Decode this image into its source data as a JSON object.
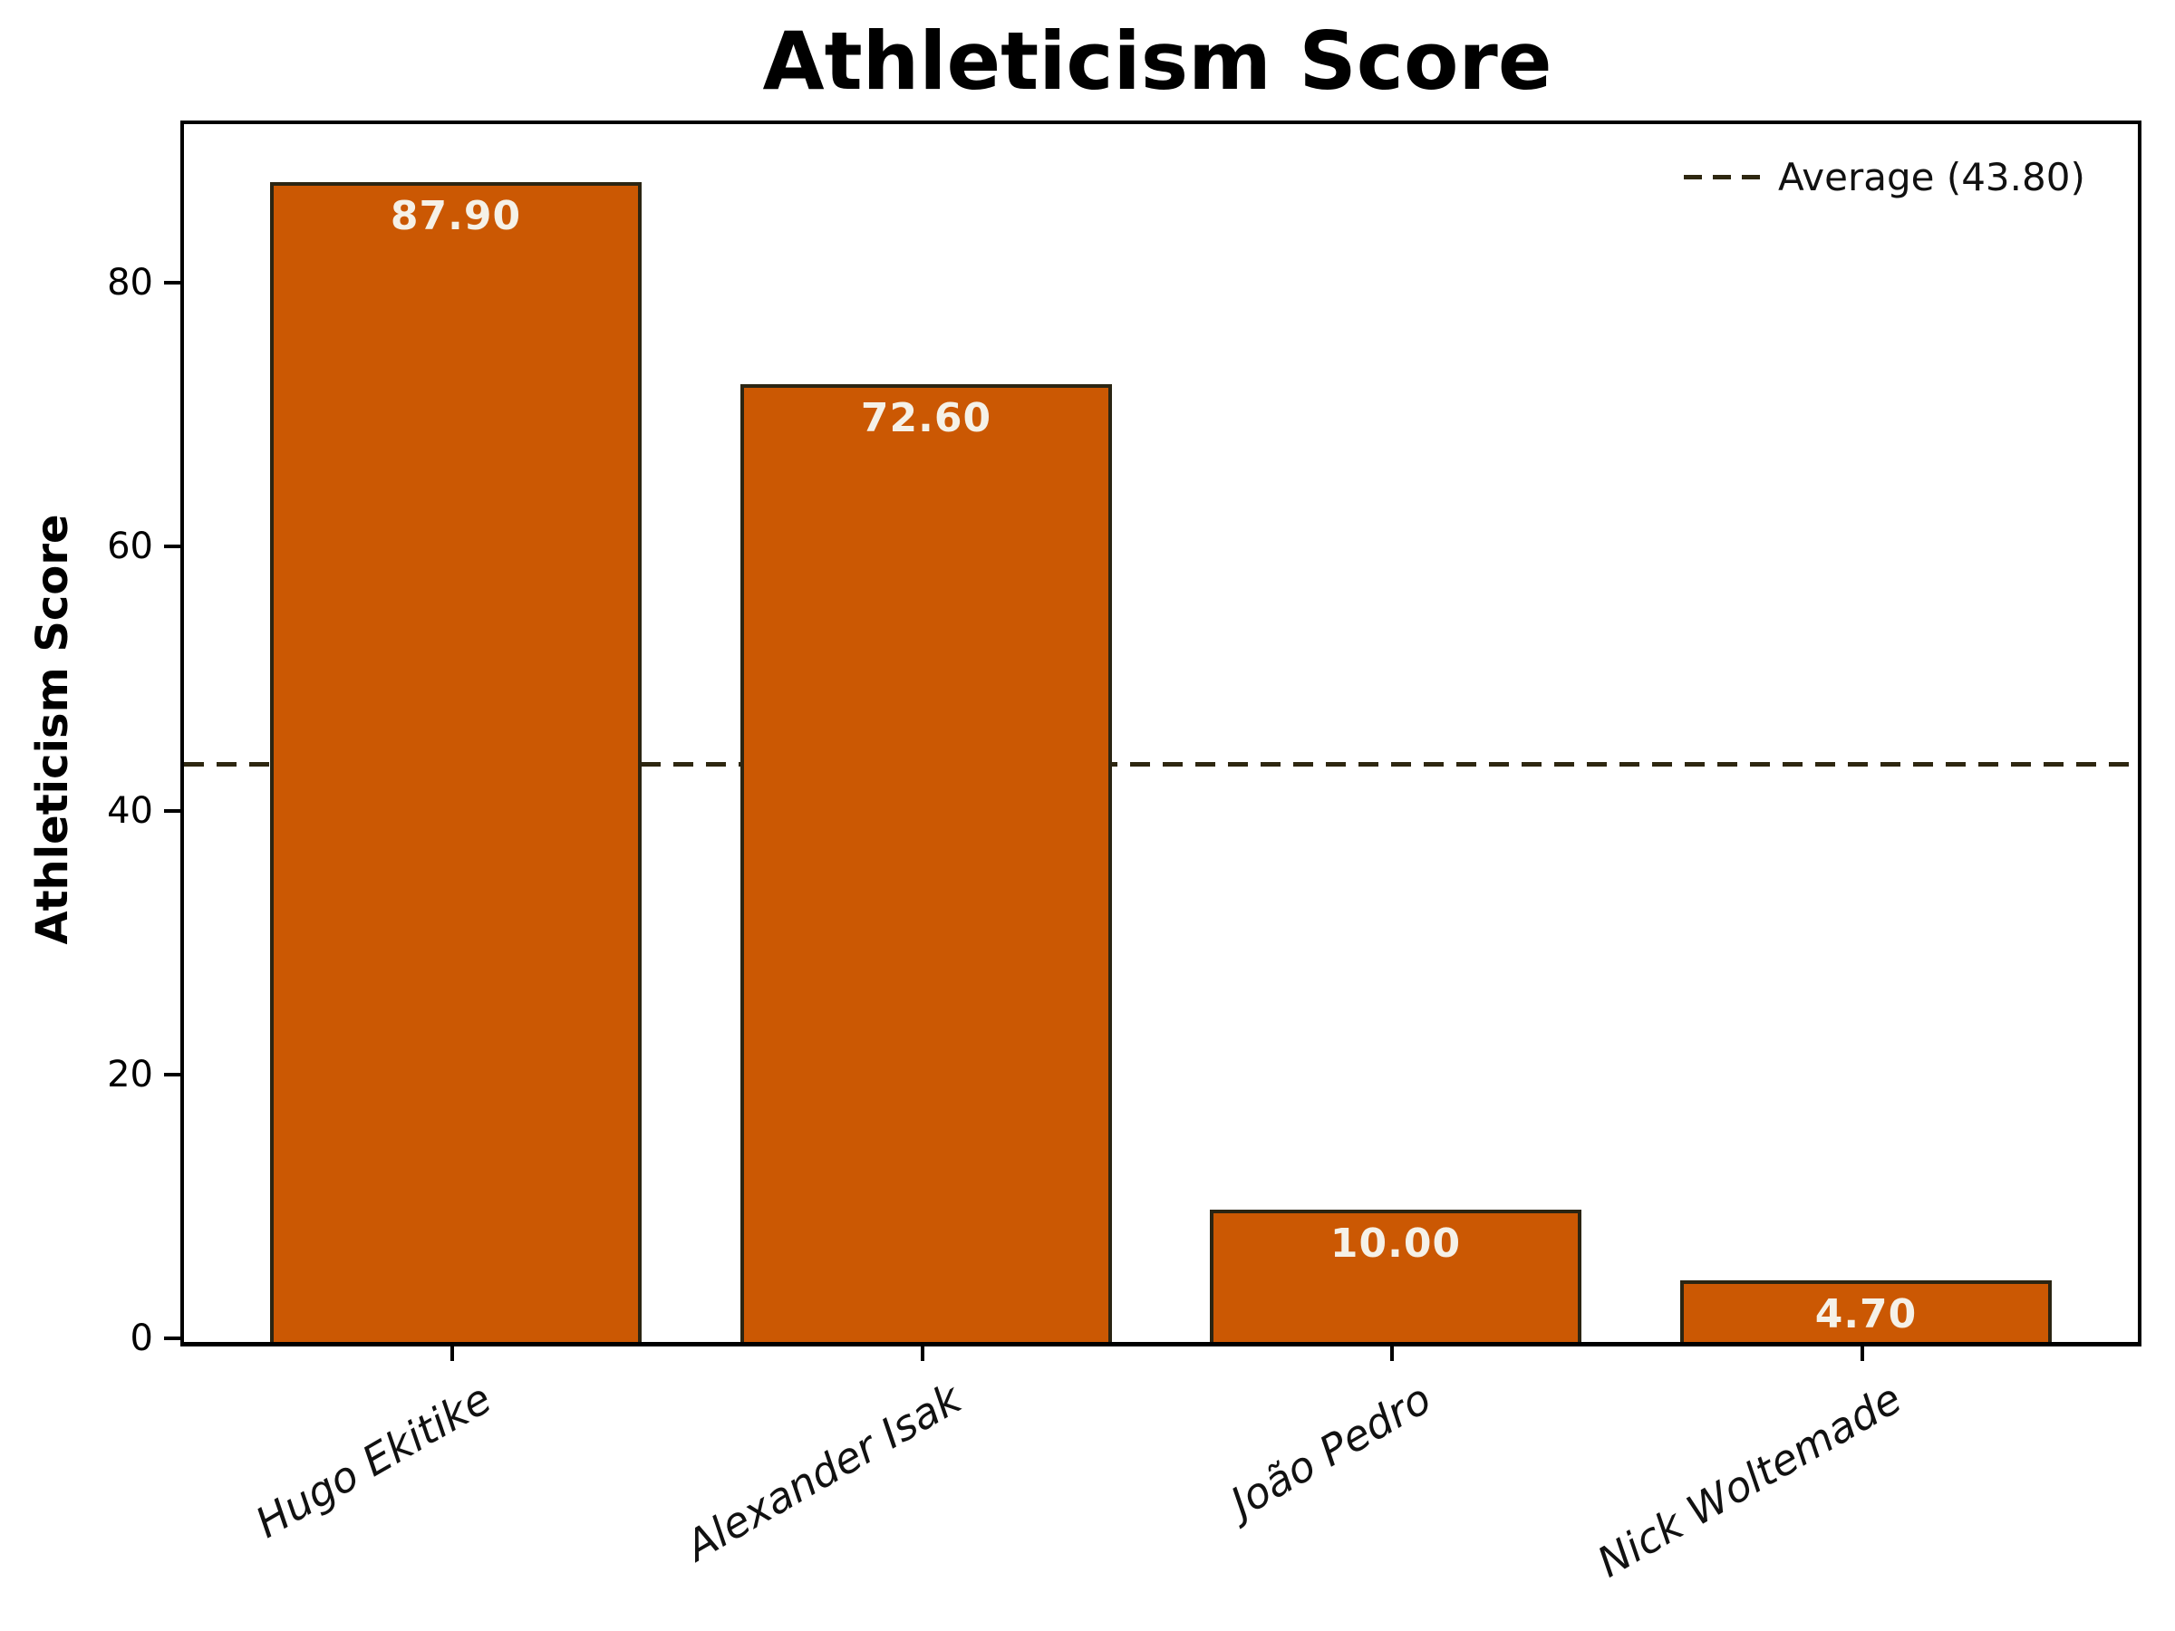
{
  "chart_data": {
    "type": "bar",
    "title": "Athleticism Score",
    "ylabel": "Athleticism Score",
    "xlabel": "",
    "categories": [
      "Hugo Ekitike",
      "Alexander Isak",
      "João Pedro",
      "Nick Woltemade"
    ],
    "values": [
      87.9,
      72.6,
      10.0,
      4.7
    ],
    "value_labels": [
      "87.90",
      "72.60",
      "10.00",
      "4.70"
    ],
    "yticks": [
      0,
      20,
      40,
      60,
      80
    ],
    "ytick_labels": [
      "0",
      "20",
      "40",
      "60",
      "80"
    ],
    "ylim": [
      0,
      92.3
    ],
    "grid": false,
    "bar_label_position": "inside-top",
    "average_line": {
      "value": 43.8,
      "label": "Average (43.80)",
      "style": "dashed"
    },
    "legend_position": "upper right",
    "colors": {
      "bar_fill": "#CB5803",
      "bar_edge": "#2B2513",
      "average_line": "#2E2710",
      "value_label_text": "#F5F1E8",
      "axis_text": "#000000",
      "background": "#FFFFFF"
    }
  }
}
